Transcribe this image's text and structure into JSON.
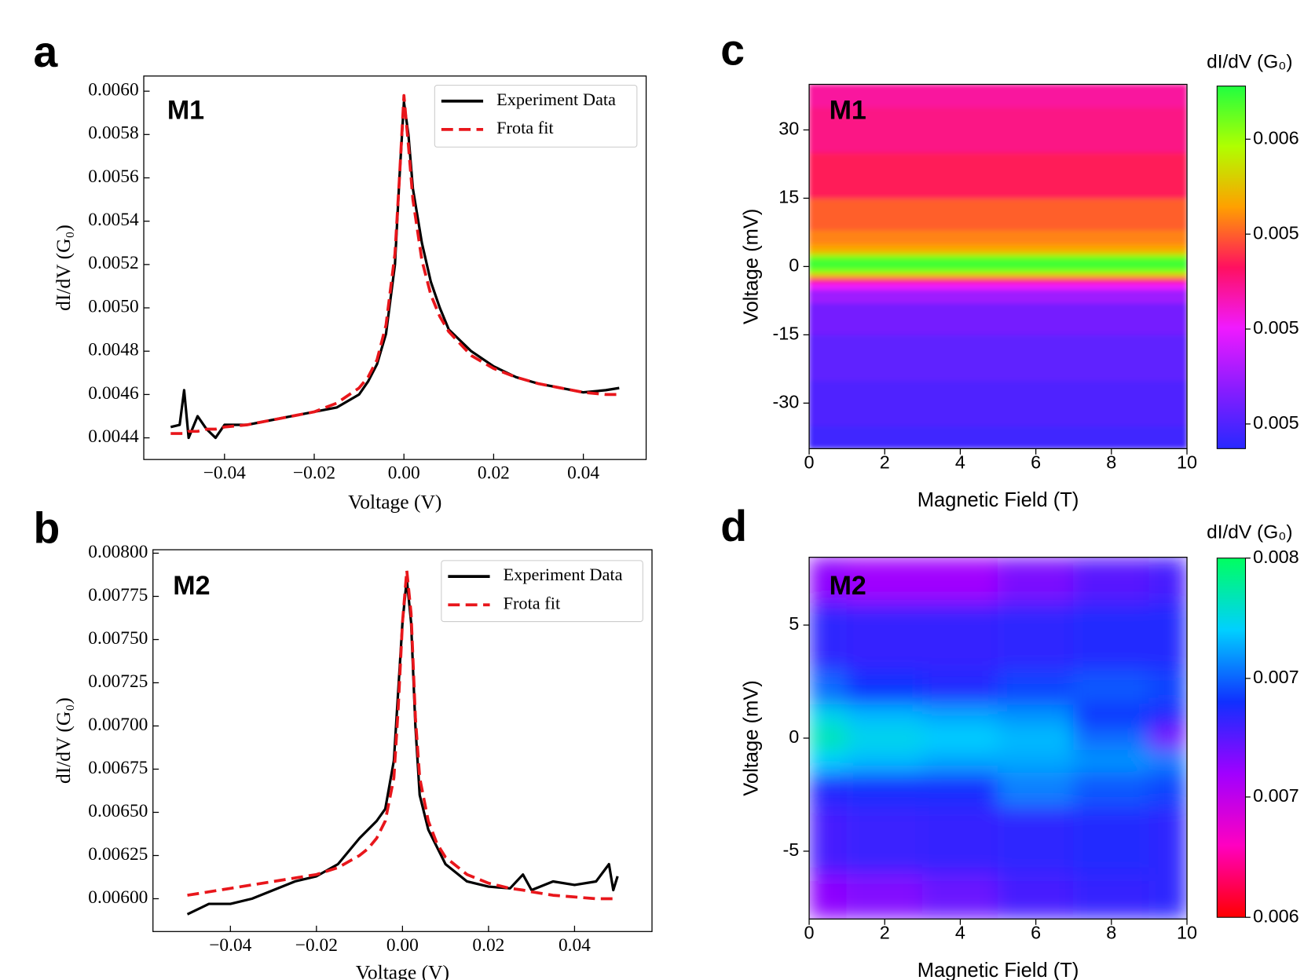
{
  "chart_data": [
    {
      "type": "line",
      "panel_label": "a",
      "annotation": "M1",
      "xlabel": "Voltage (V)",
      "ylabel": "dI/dV (G₀)",
      "xlim": [
        -0.058,
        0.054
      ],
      "ylim": [
        0.0043,
        0.00607
      ],
      "xticks": [
        {
          "value": -0.04,
          "label": "−0.04"
        },
        {
          "value": -0.02,
          "label": "−0.02"
        },
        {
          "value": 0,
          "label": "0.00"
        },
        0.02,
        0.04
      ],
      "yticks": [
        0.0044,
        0.0046,
        0.0048,
        {
          "value": 0.005,
          "label": "0.0050"
        },
        0.0052,
        0.0054,
        0.0056,
        0.0058,
        {
          "value": 0.006,
          "label": "0.0060"
        }
      ],
      "legend": "upper right",
      "x": [
        -0.052,
        -0.05,
        -0.049,
        -0.048,
        -0.046,
        -0.044,
        -0.042,
        -0.04,
        -0.035,
        -0.03,
        -0.025,
        -0.02,
        -0.015,
        -0.01,
        -0.008,
        -0.006,
        -0.004,
        -0.002,
        -0.001,
        0,
        0.001,
        0.002,
        0.004,
        0.006,
        0.008,
        0.01,
        0.015,
        0.02,
        0.025,
        0.03,
        0.035,
        0.04,
        0.045,
        0.048
      ],
      "series": [
        {
          "name": "Experiment Data",
          "color": "#000000",
          "linestyle": "solid",
          "values": [
            0.00445,
            0.00446,
            0.00462,
            0.0044,
            0.0045,
            0.00444,
            0.0044,
            0.00446,
            0.00446,
            0.00448,
            0.0045,
            0.00452,
            0.00454,
            0.0046,
            0.00466,
            0.00474,
            0.00488,
            0.0052,
            0.0056,
            0.00595,
            0.0058,
            0.00555,
            0.0053,
            0.00512,
            0.005,
            0.0049,
            0.0048,
            0.00473,
            0.00468,
            0.00465,
            0.00463,
            0.00461,
            0.00462,
            0.00463
          ]
        },
        {
          "name": "Frota fit",
          "color": "#e8161b",
          "linestyle": "dashed",
          "values": [
            0.00442,
            0.00442,
            0.00442,
            0.00443,
            0.00443,
            0.00444,
            0.00444,
            0.00445,
            0.00446,
            0.00448,
            0.0045,
            0.00452,
            0.00456,
            0.00463,
            0.00468,
            0.00476,
            0.00492,
            0.00525,
            0.0056,
            0.00598,
            0.00575,
            0.0055,
            0.00522,
            0.00506,
            0.00496,
            0.00489,
            0.00478,
            0.00472,
            0.00468,
            0.00465,
            0.00463,
            0.00461,
            0.0046,
            0.0046
          ]
        }
      ]
    },
    {
      "type": "line",
      "panel_label": "b",
      "annotation": "M2",
      "xlabel": "Voltage (V)",
      "ylabel": "dI/dV (G₀)",
      "xlim": [
        -0.058,
        0.058
      ],
      "ylim": [
        0.00581,
        0.00802
      ],
      "xticks": [
        {
          "value": -0.04,
          "label": "−0.04"
        },
        {
          "value": -0.02,
          "label": "−0.02"
        },
        {
          "value": 0,
          "label": "0.00"
        },
        0.02,
        0.04
      ],
      "yticks": [
        {
          "value": 0.006,
          "label": "0.00600"
        },
        0.00625,
        {
          "value": 0.0065,
          "label": "0.00650"
        },
        0.00675,
        {
          "value": 0.007,
          "label": "0.00700"
        },
        0.00725,
        {
          "value": 0.0075,
          "label": "0.00750"
        },
        0.00775,
        {
          "value": 0.008,
          "label": "0.00800"
        }
      ],
      "legend": "upper right",
      "x": [
        -0.05,
        -0.045,
        -0.04,
        -0.035,
        -0.03,
        -0.025,
        -0.02,
        -0.015,
        -0.01,
        -0.008,
        -0.006,
        -0.004,
        -0.002,
        -0.001,
        0,
        0.001,
        0.002,
        0.003,
        0.004,
        0.006,
        0.008,
        0.01,
        0.015,
        0.02,
        0.025,
        0.028,
        0.03,
        0.035,
        0.04,
        0.045,
        0.048,
        0.049,
        0.05
      ],
      "series": [
        {
          "name": "Experiment Data",
          "color": "#000000",
          "linestyle": "solid",
          "values": [
            0.00591,
            0.00597,
            0.00597,
            0.006,
            0.00605,
            0.0061,
            0.00613,
            0.0062,
            0.00635,
            0.0064,
            0.00645,
            0.00652,
            0.0068,
            0.0072,
            0.0076,
            0.00785,
            0.0076,
            0.007,
            0.0066,
            0.0064,
            0.0063,
            0.0062,
            0.0061,
            0.00607,
            0.00606,
            0.00614,
            0.00605,
            0.0061,
            0.00608,
            0.0061,
            0.0062,
            0.00605,
            0.00613
          ]
        },
        {
          "name": "Frota fit",
          "color": "#e8161b",
          "linestyle": "dashed",
          "values": [
            0.00602,
            0.00604,
            0.00606,
            0.00608,
            0.0061,
            0.00612,
            0.00614,
            0.00618,
            0.00625,
            0.00629,
            0.00635,
            0.00645,
            0.0067,
            0.0071,
            0.0076,
            0.0079,
            0.00765,
            0.00705,
            0.0067,
            0.00645,
            0.00632,
            0.00624,
            0.00614,
            0.00609,
            0.00606,
            0.00605,
            0.00604,
            0.00602,
            0.00601,
            0.006,
            0.006,
            0.006,
            0.00599
          ]
        }
      ]
    },
    {
      "type": "heatmap",
      "panel_label": "c",
      "annotation": "M1",
      "xlabel": "Magnetic Field (T)",
      "ylabel": "Voltage (mV)",
      "xlim": [
        0,
        10
      ],
      "ylim": [
        -40,
        40
      ],
      "xticks": [
        0,
        2,
        4,
        6,
        8,
        10
      ],
      "yticks": [
        -30,
        -15,
        0,
        15,
        30
      ],
      "x": [
        0,
        5,
        10
      ],
      "y": [
        -40,
        -30,
        -20,
        -10,
        -6,
        -4,
        -3,
        -2,
        -1,
        0,
        1,
        2,
        3,
        4,
        6,
        10,
        20,
        30,
        40
      ],
      "z": [
        [
          0.00445,
          0.00445,
          0.00445
        ],
        [
          0.0045,
          0.0045,
          0.0045
        ],
        [
          0.00455,
          0.00455,
          0.00455
        ],
        [
          0.00462,
          0.00462,
          0.00462
        ],
        [
          0.00475,
          0.00475,
          0.00475
        ],
        [
          0.005,
          0.005,
          0.005
        ],
        [
          0.0053,
          0.0053,
          0.0053
        ],
        [
          0.0057,
          0.0057,
          0.0057
        ],
        [
          0.00605,
          0.00605,
          0.00605
        ],
        [
          0.0062,
          0.0062,
          0.0062
        ],
        [
          0.00622,
          0.00622,
          0.00622
        ],
        [
          0.0061,
          0.0061,
          0.0061
        ],
        [
          0.0058,
          0.0058,
          0.0058
        ],
        [
          0.00565,
          0.00565,
          0.00565
        ],
        [
          0.00558,
          0.00558,
          0.00558
        ],
        [
          0.0055,
          0.0055,
          0.0055
        ],
        [
          0.00535,
          0.00535,
          0.00535
        ],
        [
          0.00525,
          0.00525,
          0.00525
        ],
        [
          0.0052,
          0.0052,
          0.0052
        ]
      ],
      "colorbar": {
        "label": "dI/dV (G₀)",
        "lim": [
          0.00437,
          0.00628
        ],
        "ticks": [
          {
            "value": 0.006,
            "label": "0.006"
          },
          {
            "value": 0.0055,
            "label": "0.005"
          },
          {
            "value": 0.005,
            "label": "0.005"
          },
          {
            "value": 0.0045,
            "label": "0.005"
          }
        ],
        "colormap": [
          "#2828ff",
          "#8a1cff",
          "#f01aff",
          "#ff1060",
          "#ffa000",
          "#b0ff00",
          "#20ff40"
        ]
      }
    },
    {
      "type": "heatmap",
      "panel_label": "d",
      "annotation": "M2",
      "xlabel": "Magnetic Field (T)",
      "ylabel": "Voltage (mV)",
      "xlim": [
        0,
        10
      ],
      "ylim": [
        -8,
        8
      ],
      "xticks": [
        0,
        2,
        4,
        6,
        8,
        10
      ],
      "yticks": [
        -5,
        0,
        5
      ],
      "x": [
        0,
        2,
        4,
        6,
        8,
        10
      ],
      "y": [
        -8,
        -4,
        -2,
        -1,
        0,
        1,
        2,
        4,
        8
      ],
      "z": [
        [
          0.00685,
          0.00688,
          0.00695,
          0.00705,
          0.0071,
          0.00712
        ],
        [
          0.00705,
          0.00708,
          0.0071,
          0.00712,
          0.00715,
          0.00712
        ],
        [
          0.00715,
          0.00718,
          0.00718,
          0.0074,
          0.0073,
          0.00725
        ],
        [
          0.0076,
          0.00755,
          0.0075,
          0.0075,
          0.00745,
          0.0074
        ],
        [
          0.0078,
          0.00765,
          0.0076,
          0.00755,
          0.00735,
          0.0069
        ],
        [
          0.00765,
          0.00755,
          0.0075,
          0.00745,
          0.0072,
          0.00715
        ],
        [
          0.00735,
          0.0072,
          0.00715,
          0.00725,
          0.0073,
          0.00725
        ],
        [
          0.00712,
          0.0071,
          0.0071,
          0.00712,
          0.00715,
          0.00715
        ],
        [
          0.00685,
          0.0068,
          0.0068,
          0.0069,
          0.007,
          0.00705
        ]
      ],
      "colorbar": {
        "label": "dI/dV (G₀)",
        "lim": [
          0.006,
          0.008
        ],
        "ticks": [
          {
            "value": 0.008,
            "label": "0.008"
          },
          {
            "value": 0.00733,
            "label": "0.007"
          },
          {
            "value": 0.00667,
            "label": "0.007"
          },
          {
            "value": 0.006,
            "label": "0.006"
          }
        ],
        "colormap": [
          "#ff0000",
          "#ff00c0",
          "#a000ff",
          "#1030ff",
          "#00d0ff",
          "#00ff60"
        ]
      }
    }
  ]
}
